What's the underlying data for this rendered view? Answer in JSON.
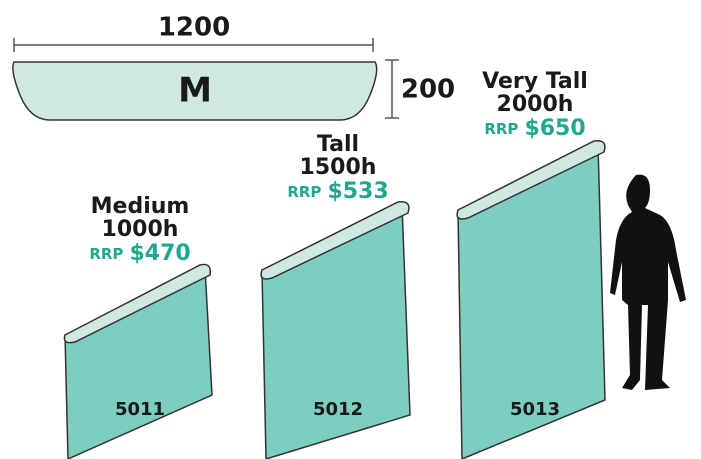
{
  "top": {
    "width": "1200",
    "shape": "M",
    "depth": "200"
  },
  "products": [
    {
      "name": "Medium",
      "height": "1000h",
      "rrp": "RRP",
      "price": "$470",
      "code": "5011"
    },
    {
      "name": "Tall",
      "height": "1500h",
      "rrp": "RRP",
      "price": "$533",
      "code": "5012"
    },
    {
      "name": "Very Tall",
      "height": "2000h",
      "rrp": "RRP",
      "price": "$650",
      "code": "5013"
    }
  ]
}
